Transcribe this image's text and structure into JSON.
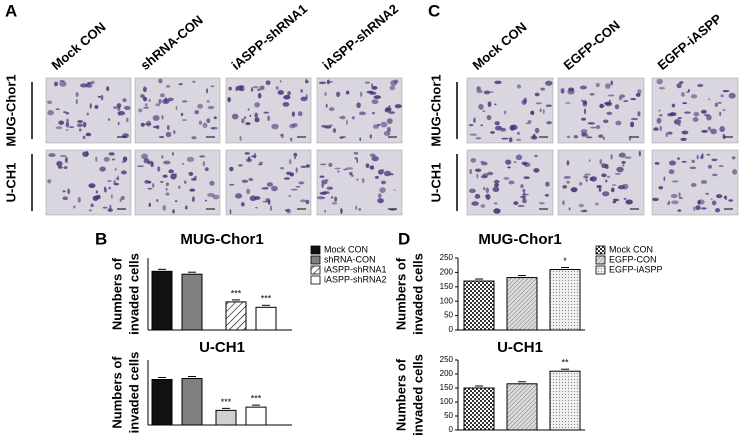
{
  "panel_labels": [
    "A",
    "B",
    "C",
    "D"
  ],
  "panel_a": {
    "columns": [
      "Mock CON",
      "shRNA-CON",
      "iASPP-shRNA1",
      "iASPP-shRNA2"
    ],
    "rows": [
      "MUG-Chor1",
      "U-CH1"
    ]
  },
  "panel_c": {
    "columns": [
      "Mock CON",
      "EGFP-CON",
      "EGFP-iASPP"
    ],
    "rows": [
      "MUG-Chor1",
      "U-CH1"
    ]
  },
  "chart_data": [
    {
      "type": "bar",
      "title": "MUG-Chor1",
      "ylabel": [
        "Numbers of",
        "invaded cells"
      ],
      "categories": [
        "Mock CON",
        "shRNA-CON",
        "iASPP-shRNA1",
        "iASPP-shRNA2"
      ],
      "values": [
        163,
        155,
        78,
        63
      ],
      "fills": [
        "#111111",
        "#808080",
        "hatch",
        "#ffffff"
      ],
      "ylim": [
        0,
        200
      ],
      "annotations": [
        {
          "index": 2,
          "text": "***"
        },
        {
          "index": 3,
          "text": "***"
        }
      ],
      "legend": "right"
    },
    {
      "type": "bar",
      "title": "U-CH1",
      "ylabel": [
        "Numbers of",
        "invaded cells"
      ],
      "values": [
        140,
        143,
        45,
        55
      ],
      "fills": [
        "#111111",
        "#808080",
        "#d0d0d0",
        "#ffffff"
      ],
      "ylim": [
        0,
        200
      ],
      "annotations": [
        {
          "index": 2,
          "text": "***"
        },
        {
          "index": 3,
          "text": "***"
        }
      ]
    },
    {
      "type": "bar",
      "title": "MUG-Chor1",
      "ylabel": [
        "Numbers of",
        "invaded cells"
      ],
      "categories": [
        "Mock CON",
        "EGFP-CON",
        "EGFP-iASPP"
      ],
      "values": [
        170,
        182,
        210
      ],
      "fills": [
        "crosshatch",
        "diagonal",
        "dots"
      ],
      "ylim": [
        0,
        250
      ],
      "yticks": [
        0,
        50,
        100,
        150,
        200,
        250
      ],
      "annotations": [
        {
          "index": 2,
          "text": "*"
        }
      ],
      "legend": "right"
    },
    {
      "type": "bar",
      "title": "U-CH1",
      "ylabel": [
        "Numbers of",
        "invaded cells"
      ],
      "values": [
        150,
        165,
        210
      ],
      "fills": [
        "crosshatch",
        "diagonal",
        "dots"
      ],
      "ylim": [
        0,
        250
      ],
      "yticks": [
        0,
        50,
        100,
        150,
        200,
        250
      ],
      "annotations": [
        {
          "index": 2,
          "text": "**"
        }
      ]
    }
  ]
}
